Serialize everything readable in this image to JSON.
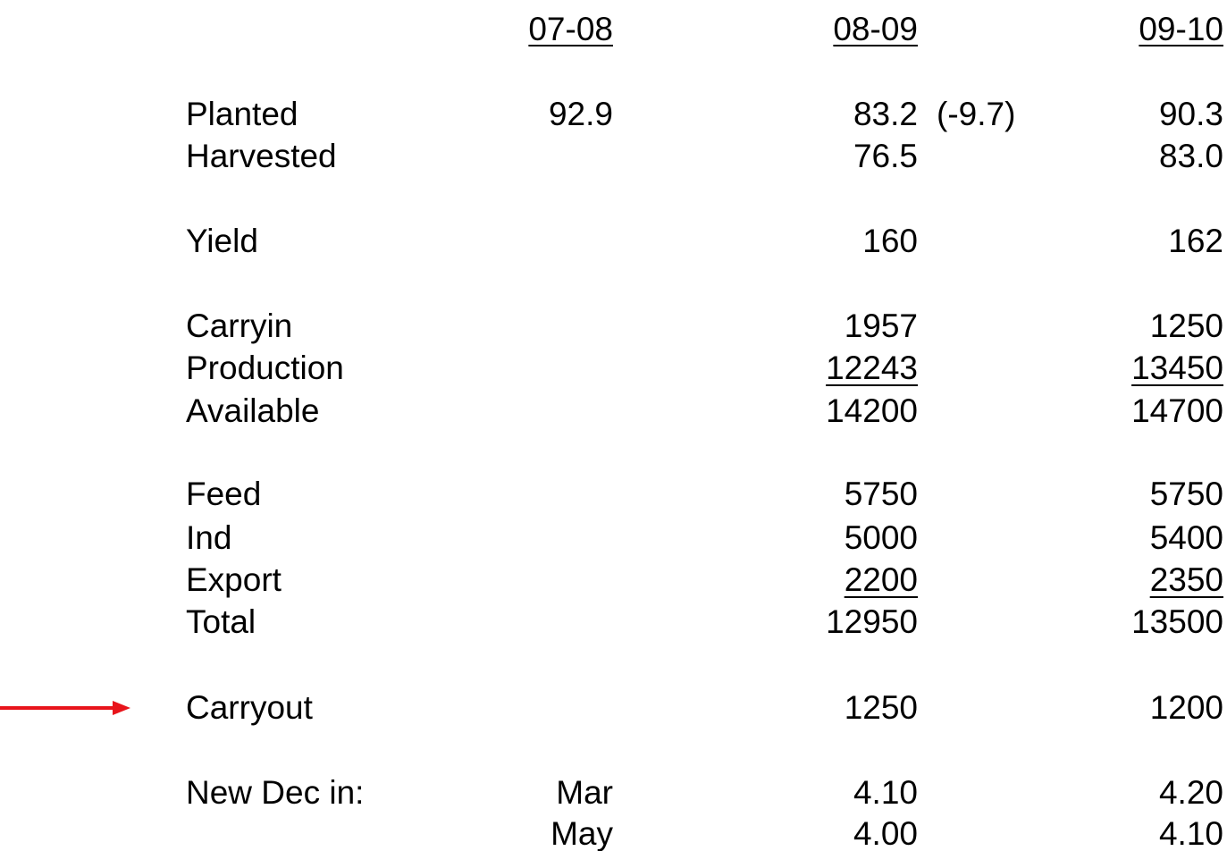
{
  "table": {
    "headers": [
      "07-08",
      "08-09",
      "09-10"
    ],
    "rows": [
      {
        "label": "Planted",
        "values": [
          "92.9",
          "83.2",
          "90.3"
        ],
        "note": "(-9.7)"
      },
      {
        "label": "Harvested",
        "values": [
          null,
          "76.5",
          "83.0"
        ]
      },
      {
        "label": "Yield",
        "values": [
          null,
          "160",
          "162"
        ]
      },
      {
        "label": "Carryin",
        "values": [
          null,
          "1957",
          "1250"
        ]
      },
      {
        "label": "Production",
        "values": [
          null,
          "12243",
          "13450"
        ],
        "underline": true
      },
      {
        "label": "Available",
        "values": [
          null,
          "14200",
          "14700"
        ]
      },
      {
        "label": "Feed",
        "values": [
          null,
          "5750",
          "5750"
        ]
      },
      {
        "label": "Ind",
        "values": [
          null,
          "5000",
          "5400"
        ]
      },
      {
        "label": "Export",
        "values": [
          null,
          "2200",
          "2350"
        ],
        "underline": true
      },
      {
        "label": "Total",
        "values": [
          null,
          "12950",
          "13500"
        ]
      },
      {
        "label": "Carryout",
        "values": [
          null,
          "1250",
          "1200"
        ]
      },
      {
        "label": "New Dec in:",
        "values": [
          "Mar",
          "4.10",
          "4.20"
        ]
      },
      {
        "label": null,
        "values": [
          "May",
          "4.00",
          "4.10"
        ]
      }
    ]
  }
}
